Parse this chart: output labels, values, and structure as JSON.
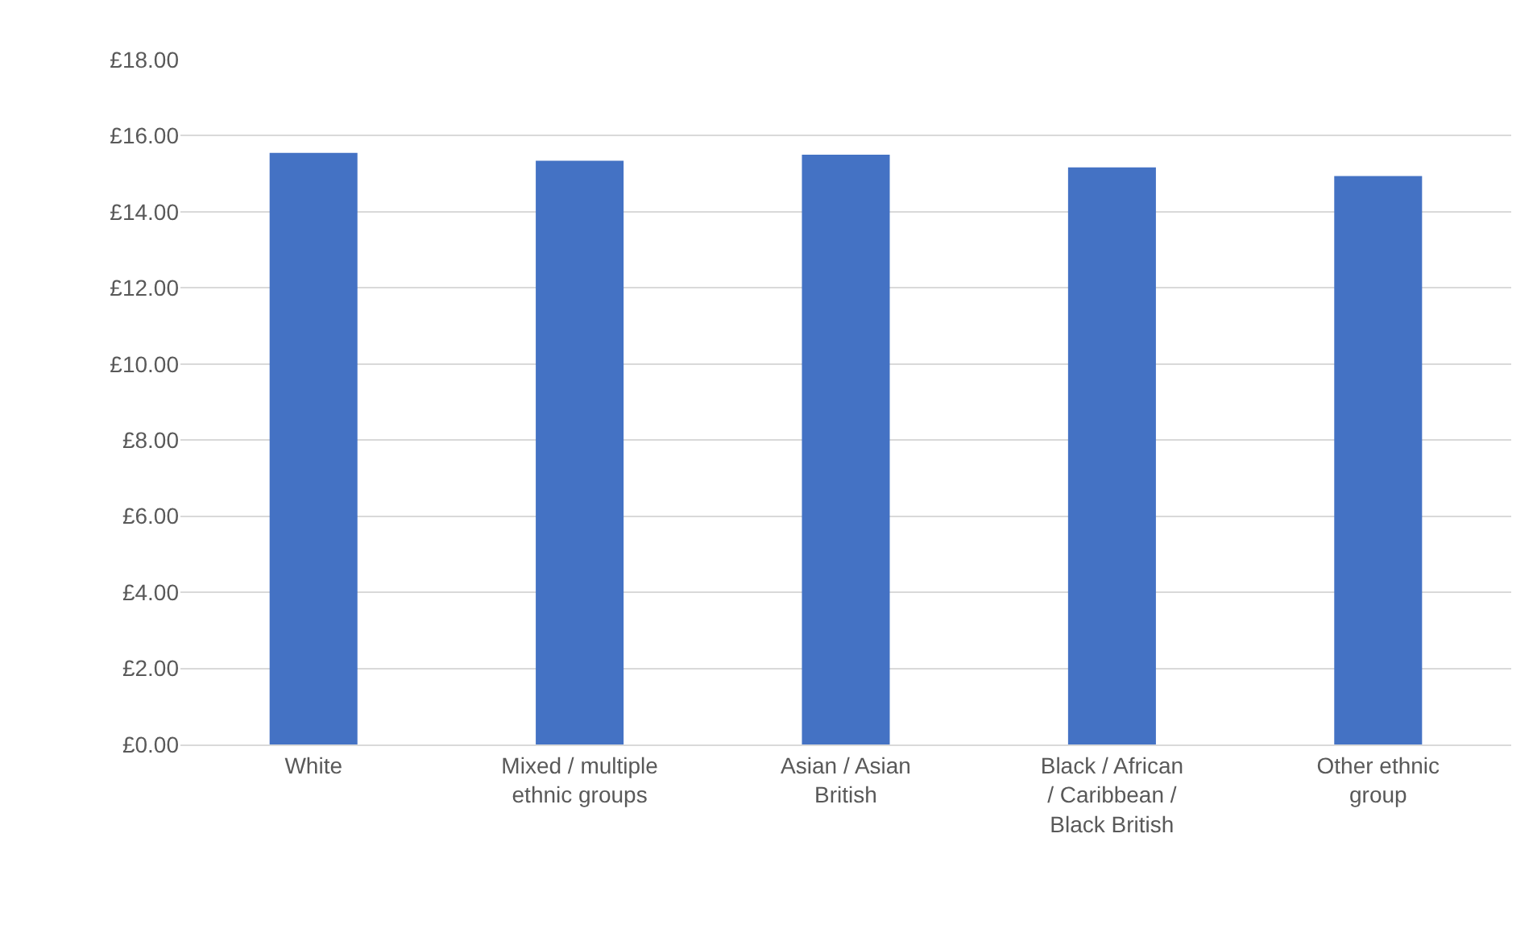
{
  "chart_data": {
    "type": "bar",
    "categories": [
      "White",
      "Mixed / multiple ethnic groups",
      "Asian / Asian British",
      "Black / African / Caribbean / Black British",
      "Other ethnic group"
    ],
    "values": [
      15.55,
      15.34,
      15.5,
      15.17,
      14.94
    ],
    "color": "#4472c4",
    "ylim": [
      0,
      18
    ],
    "yticks": [
      {
        "value": 0,
        "label": "£0.00"
      },
      {
        "value": 2,
        "label": "£2.00"
      },
      {
        "value": 4,
        "label": "£4.00"
      },
      {
        "value": 6,
        "label": "£6.00"
      },
      {
        "value": 8,
        "label": "£8.00"
      },
      {
        "value": 10,
        "label": "£10.00"
      },
      {
        "value": 12,
        "label": "£12.00"
      },
      {
        "value": 14,
        "label": "£14.00"
      },
      {
        "value": 16,
        "label": "£16.00"
      },
      {
        "value": 18,
        "label": "£18.00"
      }
    ],
    "grid": "y"
  }
}
